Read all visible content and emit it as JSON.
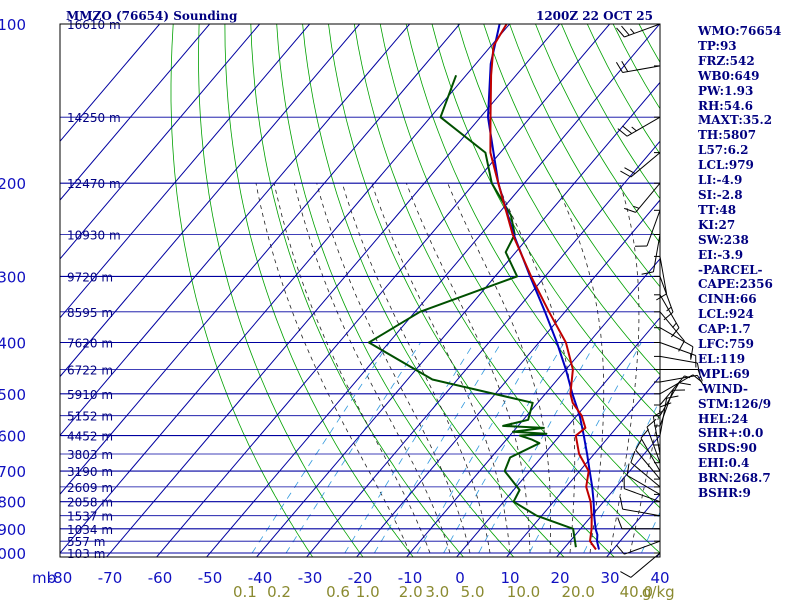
{
  "header": {
    "station": "MMZO (76654) Sounding",
    "time": "1200Z 22 OCT 25"
  },
  "indices": [
    "WMO:76654",
    "TP:93",
    "FRZ:542",
    "WB0:649",
    "PW:1.93",
    "RH:54.6",
    "MAXT:35.2",
    "TH:5807",
    "L57:6.2",
    "LCL:979",
    "LI:-4.9",
    "SI:-2.8",
    "TT:48",
    "KI:27",
    "SW:238",
    "EI:-3.9",
    "-PARCEL-",
    "CAPE:2356",
    "CINH:66",
    "LCL:924",
    "CAP:1.7",
    "LFC:759",
    "EL:119",
    "MPL:69",
    "-WIND-",
    "STM:126/9",
    "HEL:24",
    "SHR+:0.0",
    "SRDS:90",
    "EHI:0.4",
    "BRN:268.7",
    "BSHR:9"
  ],
  "colors": {
    "grid": "#0000a0",
    "dry_adiabat": "#00a000",
    "moist_adiabat": "#202020",
    "mixing_ratio": "#3399dd",
    "temperature": "#c00000",
    "dewpoint": "#005000",
    "parcel": "#0000c0",
    "mixing_labels": "#8a8a30"
  },
  "chart_data": {
    "type": "skew-t log-p sounding",
    "title": "MMZO (76654) Sounding",
    "ylabel": "mb",
    "xlabel": "",
    "x_unit": "°C",
    "y_scale": "log",
    "ylim": [
      1000,
      100
    ],
    "xlim": [
      -80,
      40
    ],
    "grid": true,
    "pressure_ticks": [
      100,
      200,
      300,
      400,
      500,
      600,
      700,
      800,
      900,
      1000
    ],
    "temperature_ticks": [
      -80,
      -70,
      -60,
      -50,
      -40,
      -30,
      -20,
      -10,
      0,
      10,
      20,
      30,
      40
    ],
    "mixing_ratio_labels": [
      "0.1",
      "0.2",
      "0.6",
      "1.0",
      "2.0",
      "3.0",
      "5.0",
      "10.0",
      "20.0",
      "40.0",
      "g/kg"
    ],
    "mixing_ratio_values": [
      0.1,
      0.2,
      0.6,
      1.0,
      2.0,
      3.0,
      5.0,
      10.0,
      20.0,
      40.0
    ],
    "height_labels": [
      {
        "p": 100,
        "label": "16610 m"
      },
      {
        "p": 150,
        "label": "14250 m"
      },
      {
        "p": 200,
        "label": "12470 m"
      },
      {
        "p": 250,
        "label": "10930 m"
      },
      {
        "p": 300,
        "label": "9720 m"
      },
      {
        "p": 350,
        "label": "8595 m"
      },
      {
        "p": 400,
        "label": "7620 m"
      },
      {
        "p": 450,
        "label": "6722 m"
      },
      {
        "p": 500,
        "label": "5910 m"
      },
      {
        "p": 550,
        "label": "5152 m"
      },
      {
        "p": 600,
        "label": "4452 m"
      },
      {
        "p": 650,
        "label": "3803 m"
      },
      {
        "p": 700,
        "label": "3190 m"
      },
      {
        "p": 750,
        "label": "2609 m"
      },
      {
        "p": 800,
        "label": "2058 m"
      },
      {
        "p": 850,
        "label": "1537 m"
      },
      {
        "p": 900,
        "label": "1034 m"
      },
      {
        "p": 950,
        "label": "557 m"
      },
      {
        "p": 1000,
        "label": "103 m"
      }
    ],
    "temperature": [
      {
        "p": 985,
        "t": 26.6
      },
      {
        "p": 950,
        "t": 24.0
      },
      {
        "p": 900,
        "t": 22.2
      },
      {
        "p": 850,
        "t": 20.0
      },
      {
        "p": 800,
        "t": 17.4
      },
      {
        "p": 750,
        "t": 14.0
      },
      {
        "p": 700,
        "t": 11.8
      },
      {
        "p": 650,
        "t": 7.0
      },
      {
        "p": 600,
        "t": 3.2
      },
      {
        "p": 580,
        "t": 3.8
      },
      {
        "p": 550,
        "t": 1.0
      },
      {
        "p": 520,
        "t": -3.0
      },
      {
        "p": 500,
        "t": -5.0
      },
      {
        "p": 450,
        "t": -8.6
      },
      {
        "p": 400,
        "t": -14.6
      },
      {
        "p": 350,
        "t": -23.2
      },
      {
        "p": 300,
        "t": -32.8
      },
      {
        "p": 250,
        "t": -43.6
      },
      {
        "p": 200,
        "t": -55.2
      },
      {
        "p": 175,
        "t": -62.0
      },
      {
        "p": 150,
        "t": -68.0
      },
      {
        "p": 125,
        "t": -75.0
      },
      {
        "p": 110,
        "t": -79.5
      },
      {
        "p": 100,
        "t": -80.6
      }
    ],
    "dewpoint": [
      {
        "p": 975,
        "t": 22.2
      },
      {
        "p": 900,
        "t": 18.5
      },
      {
        "p": 850,
        "t": 9.0
      },
      {
        "p": 800,
        "t": 2.0
      },
      {
        "p": 760,
        "t": 1.2
      },
      {
        "p": 700,
        "t": -5.0
      },
      {
        "p": 660,
        "t": -6.2
      },
      {
        "p": 620,
        "t": -2.8
      },
      {
        "p": 610,
        "t": -5.0
      },
      {
        "p": 600,
        "t": -8.0
      },
      {
        "p": 595,
        "t": -3.0
      },
      {
        "p": 590,
        "t": -10.0
      },
      {
        "p": 580,
        "t": -4.5
      },
      {
        "p": 575,
        "t": -13.0
      },
      {
        "p": 560,
        "t": -9.0
      },
      {
        "p": 520,
        "t": -11.0
      },
      {
        "p": 470,
        "t": -35.0
      },
      {
        "p": 400,
        "t": -54.0
      },
      {
        "p": 350,
        "t": -49.0
      },
      {
        "p": 300,
        "t": -35.6
      },
      {
        "p": 270,
        "t": -42.0
      },
      {
        "p": 250,
        "t": -43.2
      },
      {
        "p": 230,
        "t": -47.2
      },
      {
        "p": 200,
        "t": -56.5
      },
      {
        "p": 175,
        "t": -63.0
      },
      {
        "p": 150,
        "t": -78.0
      },
      {
        "p": 125,
        "t": -82.0
      }
    ],
    "parcel": [
      {
        "p": 985,
        "t": 27.2
      },
      {
        "p": 950,
        "t": 25.4
      },
      {
        "p": 924,
        "t": 24.4
      },
      {
        "p": 900,
        "t": 23.0
      },
      {
        "p": 850,
        "t": 20.5
      },
      {
        "p": 800,
        "t": 18.0
      },
      {
        "p": 750,
        "t": 15.2
      },
      {
        "p": 700,
        "t": 12.0
      },
      {
        "p": 650,
        "t": 8.6
      },
      {
        "p": 600,
        "t": 4.8
      },
      {
        "p": 550,
        "t": 0.6
      },
      {
        "p": 500,
        "t": -4.6
      },
      {
        "p": 450,
        "t": -10.0
      },
      {
        "p": 400,
        "t": -16.4
      },
      {
        "p": 350,
        "t": -24.0
      },
      {
        "p": 300,
        "t": -33.0
      },
      {
        "p": 250,
        "t": -43.4
      },
      {
        "p": 200,
        "t": -55.2
      },
      {
        "p": 150,
        "t": -68.5
      },
      {
        "p": 119,
        "t": -77.0
      },
      {
        "p": 100,
        "t": -82.0
      }
    ],
    "wind_barbs": [
      {
        "p": 100,
        "dir": 250,
        "spd": 25
      },
      {
        "p": 120,
        "dir": 260,
        "spd": 20
      },
      {
        "p": 150,
        "dir": 240,
        "spd": 25
      },
      {
        "p": 175,
        "dir": 230,
        "spd": 20
      },
      {
        "p": 200,
        "dir": 220,
        "spd": 15
      },
      {
        "p": 225,
        "dir": 200,
        "spd": 10
      },
      {
        "p": 250,
        "dir": 190,
        "spd": 10
      },
      {
        "p": 275,
        "dir": 170,
        "spd": 10
      },
      {
        "p": 300,
        "dir": 160,
        "spd": 15
      },
      {
        "p": 325,
        "dir": 150,
        "spd": 15
      },
      {
        "p": 350,
        "dir": 140,
        "spd": 10
      },
      {
        "p": 375,
        "dir": 120,
        "spd": 10
      },
      {
        "p": 400,
        "dir": 110,
        "spd": 15
      },
      {
        "p": 425,
        "dir": 100,
        "spd": 10
      },
      {
        "p": 450,
        "dir": 90,
        "spd": 10
      },
      {
        "p": 475,
        "dir": 80,
        "spd": 10
      },
      {
        "p": 500,
        "dir": 60,
        "spd": 10
      },
      {
        "p": 525,
        "dir": 40,
        "spd": 5
      },
      {
        "p": 550,
        "dir": 30,
        "spd": 10
      },
      {
        "p": 575,
        "dir": 20,
        "spd": 10
      },
      {
        "p": 600,
        "dir": 10,
        "spd": 10
      },
      {
        "p": 625,
        "dir": 360,
        "spd": 10
      },
      {
        "p": 650,
        "dir": 350,
        "spd": 10
      },
      {
        "p": 675,
        "dir": 340,
        "spd": 10
      },
      {
        "p": 700,
        "dir": 330,
        "spd": 10
      },
      {
        "p": 725,
        "dir": 320,
        "spd": 10
      },
      {
        "p": 750,
        "dir": 310,
        "spd": 10
      },
      {
        "p": 775,
        "dir": 300,
        "spd": 10
      },
      {
        "p": 800,
        "dir": 290,
        "spd": 10
      },
      {
        "p": 850,
        "dir": 280,
        "spd": 10
      },
      {
        "p": 900,
        "dir": 270,
        "spd": 10
      },
      {
        "p": 950,
        "dir": 250,
        "spd": 10
      },
      {
        "p": 1000,
        "dir": 230,
        "spd": 10
      }
    ]
  }
}
